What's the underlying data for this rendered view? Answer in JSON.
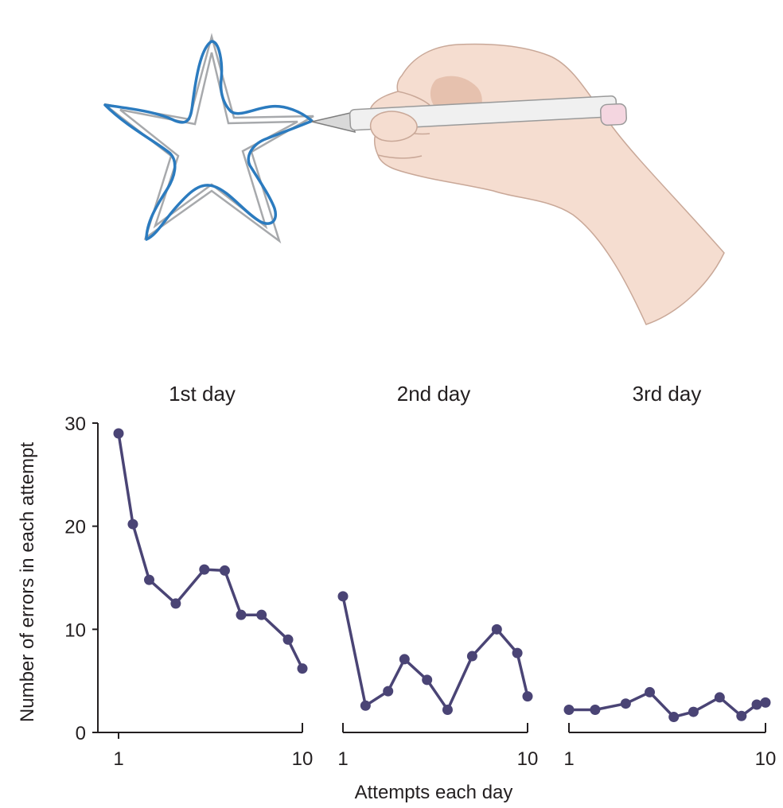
{
  "chart_data": {
    "type": "line",
    "ylabel": "Number of errors in each attempt",
    "xlabel": "Attempts each day",
    "ylim": [
      0,
      30
    ],
    "yticks": [
      0,
      10,
      20,
      30
    ],
    "grid": false,
    "legend": "none",
    "series_color": "#4a4475",
    "panels": [
      {
        "title": "1st day",
        "xticks": [
          "1",
          "10"
        ],
        "xlim": [
          1,
          10
        ],
        "points": [
          {
            "x": 1,
            "y": 29
          },
          {
            "x": 1.7,
            "y": 20.2
          },
          {
            "x": 2.5,
            "y": 14.8
          },
          {
            "x": 3.8,
            "y": 12.5
          },
          {
            "x": 5.2,
            "y": 15.8
          },
          {
            "x": 6.2,
            "y": 15.7
          },
          {
            "x": 7.0,
            "y": 11.4
          },
          {
            "x": 8.0,
            "y": 11.4
          },
          {
            "x": 9.3,
            "y": 9.0
          },
          {
            "x": 10,
            "y": 6.2
          }
        ]
      },
      {
        "title": "2nd day",
        "xticks": [
          "1",
          "10"
        ],
        "xlim": [
          1,
          10
        ],
        "points": [
          {
            "x": 1,
            "y": 13.2
          },
          {
            "x": 2.1,
            "y": 2.6
          },
          {
            "x": 3.2,
            "y": 4.0
          },
          {
            "x": 4.0,
            "y": 7.1
          },
          {
            "x": 5.1,
            "y": 5.1
          },
          {
            "x": 6.1,
            "y": 2.2
          },
          {
            "x": 7.3,
            "y": 7.4
          },
          {
            "x": 8.5,
            "y": 10.0
          },
          {
            "x": 9.5,
            "y": 7.7
          },
          {
            "x": 10,
            "y": 3.5
          }
        ]
      },
      {
        "title": "3rd day",
        "xticks": [
          "1",
          "10"
        ],
        "xlim": [
          1,
          10
        ],
        "points": [
          {
            "x": 1,
            "y": 2.2
          },
          {
            "x": 2.2,
            "y": 2.2
          },
          {
            "x": 3.6,
            "y": 2.8
          },
          {
            "x": 4.7,
            "y": 3.9
          },
          {
            "x": 5.8,
            "y": 1.5
          },
          {
            "x": 6.7,
            "y": 2.0
          },
          {
            "x": 7.9,
            "y": 3.4
          },
          {
            "x": 8.9,
            "y": 1.6
          },
          {
            "x": 9.6,
            "y": 2.7
          },
          {
            "x": 10,
            "y": 2.9
          }
        ]
      }
    ]
  },
  "illustration": {
    "subject": "hand drawing a star with a pen",
    "star_trace_color": "#2b7bbf",
    "star_outline_color": "#a7a9ac",
    "skin_color": "#f5ddd0",
    "pen_color": "#f0f0f0",
    "pen_cap_color": "#f4d6e0"
  }
}
